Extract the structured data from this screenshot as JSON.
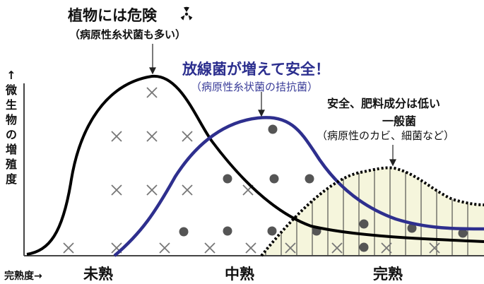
{
  "plant_danger": {
    "title": "植物には危険",
    "icon": "radiation-icon",
    "subtitle": "（病原性糸状菌も多い）",
    "color": "#000000"
  },
  "actinomycetes": {
    "title": "放線菌が増えて安全！",
    "subtitle": "（病原性糸状菌の拮抗菌）",
    "color": "#2b2e8e"
  },
  "general_bacteria": {
    "title_line1": "安全、肥料成分は低い",
    "title_line2": "一般菌",
    "subtitle": "（病原性のカビ、細菌など）",
    "fill_color": "#f5f5dc"
  },
  "axes": {
    "y_label": "↑微生物の増殖度",
    "x_label": "完熟度→"
  },
  "stages": {
    "early": "未熟",
    "middle": "中熟",
    "complete": "完熟"
  }
}
